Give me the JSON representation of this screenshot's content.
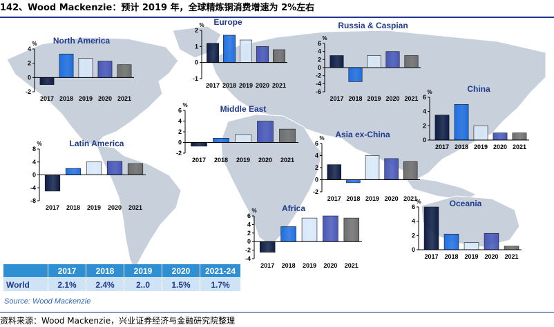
{
  "header": {
    "title": "142、Wood Mackenzie：预计 2019 年，全球精炼铜消费增速为 2%左右"
  },
  "colors": {
    "bar_2017": "#0e1e45",
    "bar_2018": "#1f6fe0",
    "bar_2019": "#d8e8f8",
    "bar_2020": "#4858b8",
    "bar_2021": "#6e6e6e",
    "table_header": "#2f8fd3",
    "table_cell": "#cfe3f6",
    "map_land": "#c8d0dc",
    "map_sea": "#ffffff"
  },
  "chart_data": [
    {
      "type": "bar",
      "title": "North America",
      "categories": [
        "2017",
        "2018",
        "2019",
        "2020",
        "2021"
      ],
      "values": [
        -1.0,
        3.3,
        2.7,
        2.3,
        1.8
      ],
      "yticks": [
        "4",
        "2",
        "0",
        "-2"
      ],
      "yunit": "%",
      "ylim": [
        -2,
        4
      ]
    },
    {
      "type": "bar",
      "title": "Europe",
      "categories": [
        "2017",
        "2018",
        "2019",
        "2020",
        "2021"
      ],
      "values": [
        1.2,
        1.7,
        1.4,
        1.0,
        0.8
      ],
      "yticks": [
        "2",
        "1",
        "0",
        "-1"
      ],
      "yunit": "%",
      "ylim": [
        -1,
        2
      ]
    },
    {
      "type": "bar",
      "title": "Russia & Caspian",
      "categories": [
        "2017",
        "2018",
        "2019",
        "2020",
        "2021"
      ],
      "values": [
        3.0,
        -3.5,
        3.0,
        4.0,
        3.0
      ],
      "yticks": [
        "6",
        "4",
        "2",
        "0",
        "-2",
        "-4",
        "-6"
      ],
      "yunit": "%",
      "ylim": [
        -6,
        6
      ]
    },
    {
      "type": "bar",
      "title": "China",
      "categories": [
        "2017",
        "2018",
        "2019",
        "2020",
        "2021"
      ],
      "values": [
        3.5,
        5.0,
        2.0,
        1.0,
        1.0
      ],
      "yticks": [
        "6",
        "4",
        "2",
        "0"
      ],
      "yunit": "%",
      "ylim": [
        0,
        6
      ]
    },
    {
      "type": "bar",
      "title": "Middle East",
      "categories": [
        "2017",
        "2018",
        "2019",
        "2020",
        "2021"
      ],
      "values": [
        -0.7,
        0.8,
        1.5,
        4.0,
        2.5
      ],
      "yticks": [
        "6",
        "4",
        "2",
        "0",
        "-2"
      ],
      "yunit": "%",
      "ylim": [
        -2,
        6
      ]
    },
    {
      "type": "bar",
      "title": "Latin America",
      "categories": [
        "2017",
        "2018",
        "2019",
        "2020",
        "2021"
      ],
      "values": [
        -5.0,
        2.0,
        4.0,
        4.2,
        3.5
      ],
      "yticks": [
        "8",
        "4",
        "0",
        "-4",
        "-8"
      ],
      "yunit": "%",
      "ylim": [
        -8,
        8
      ]
    },
    {
      "type": "bar",
      "title": "Asia ex-China",
      "categories": [
        "2017",
        "2018",
        "2019",
        "2020",
        "2021"
      ],
      "values": [
        2.5,
        -0.5,
        4.0,
        3.5,
        3.0
      ],
      "yticks": [
        "6",
        "4",
        "2",
        "0",
        "-2"
      ],
      "yunit": "%",
      "ylim": [
        -2,
        6
      ]
    },
    {
      "type": "bar",
      "title": "Africa",
      "categories": [
        "2017",
        "2018",
        "2019",
        "2020",
        "2021"
      ],
      "values": [
        -2.5,
        3.5,
        5.5,
        6.0,
        5.5
      ],
      "yticks": [
        "6",
        "4",
        "2",
        "0",
        "-2",
        "-4"
      ],
      "yunit": "%",
      "ylim": [
        -4,
        6
      ]
    },
    {
      "type": "bar",
      "title": "Oceania",
      "categories": [
        "2017",
        "2018",
        "2019",
        "2020",
        "2021"
      ],
      "values": [
        6.0,
        2.2,
        1.0,
        2.3,
        0.5
      ],
      "yticks": [
        "6",
        "4",
        "2",
        "0"
      ],
      "yunit": "%",
      "ylim": [
        0,
        6
      ]
    },
    {
      "type": "table",
      "columns": [
        "",
        "2017",
        "2018",
        "2019",
        "2020",
        "2021-24"
      ],
      "rows": [
        [
          "World",
          "2.1%",
          "2.4%",
          "2..0",
          "1.5%",
          "1.7%"
        ]
      ]
    }
  ],
  "source_inside": "Source: Wood Mackenzie",
  "footer": "资料来源：Wood Mackenzie，兴业证券经济与金融研究院整理"
}
